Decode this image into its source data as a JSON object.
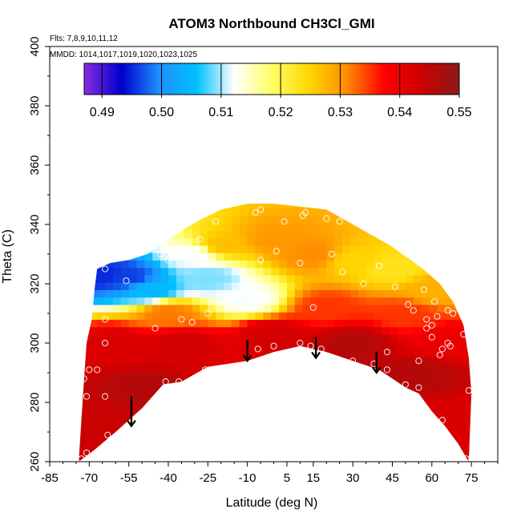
{
  "chart_data": {
    "type": "heatmap",
    "title": "ATOM3 Northbound CH3Cl_GMI",
    "xlabel": "Latitude (deg N)",
    "ylabel": "Theta (C)",
    "flights_note": "Flts: 7,8,9,10,11,12",
    "dates_note": "MMDD: 1014,1017,1019,1020,1023,1025",
    "xlim": [
      -85,
      85
    ],
    "ylim": [
      260,
      400
    ],
    "x_ticks": [
      -85,
      -70,
      -55,
      -40,
      -25,
      -10,
      5,
      15,
      30,
      45,
      60,
      75
    ],
    "y_ticks": [
      260,
      280,
      300,
      320,
      340,
      360,
      380,
      400
    ],
    "colorbar": {
      "min": 0.487,
      "max": 0.55,
      "ticks": [
        0.49,
        0.5,
        0.51,
        0.52,
        0.53,
        0.54,
        0.55
      ],
      "tick_labels": [
        "0.49",
        "0.50",
        "0.51",
        "0.52",
        "0.53",
        "0.54",
        "0.55"
      ],
      "colors": [
        "#8a2be2",
        "#0000cd",
        "#1e90ff",
        "#00bfff",
        "#ffffff",
        "#ffff66",
        "#ffd700",
        "#ff8c00",
        "#ff0000",
        "#cc0000",
        "#8b1a1a"
      ]
    },
    "upper_boundary": [
      [
        -72,
        287
      ],
      [
        -71,
        300
      ],
      [
        -69,
        308
      ],
      [
        -68,
        318
      ],
      [
        -67,
        325
      ],
      [
        -62,
        327
      ],
      [
        -55,
        328
      ],
      [
        -48,
        330
      ],
      [
        -43,
        333
      ],
      [
        -38,
        336
      ],
      [
        -33,
        339
      ],
      [
        -27,
        342
      ],
      [
        -20,
        345
      ],
      [
        -10,
        347
      ],
      [
        0,
        347
      ],
      [
        10,
        346
      ],
      [
        20,
        345
      ],
      [
        28,
        341
      ],
      [
        36,
        337
      ],
      [
        44,
        333
      ],
      [
        52,
        328
      ],
      [
        58,
        324
      ],
      [
        63,
        320
      ],
      [
        68,
        314
      ],
      [
        72,
        306
      ],
      [
        74,
        295
      ],
      [
        75,
        283
      ]
    ],
    "lower_boundary": [
      [
        -74,
        260
      ],
      [
        -68,
        264
      ],
      [
        -60,
        270
      ],
      [
        -50,
        278
      ],
      [
        -42,
        286
      ],
      [
        -35,
        287
      ],
      [
        -25,
        292
      ],
      [
        -10,
        294
      ],
      [
        0,
        297
      ],
      [
        10,
        299
      ],
      [
        20,
        297
      ],
      [
        30,
        294
      ],
      [
        40,
        291
      ],
      [
        45,
        288
      ],
      [
        50,
        285
      ],
      [
        55,
        283
      ],
      [
        60,
        277
      ],
      [
        65,
        272
      ],
      [
        70,
        266
      ],
      [
        74,
        260
      ]
    ],
    "field_points": [
      {
        "lat": -65,
        "theta": 323,
        "value": 0.495
      },
      {
        "lat": -55,
        "theta": 322,
        "value": 0.496
      },
      {
        "lat": -47,
        "theta": 318,
        "value": 0.505
      },
      {
        "lat": -30,
        "theta": 330,
        "value": 0.512
      },
      {
        "lat": -25,
        "theta": 322,
        "value": 0.509
      },
      {
        "lat": -20,
        "theta": 333,
        "value": 0.527
      },
      {
        "lat": 0,
        "theta": 335,
        "value": 0.53
      },
      {
        "lat": 15,
        "theta": 330,
        "value": 0.531
      },
      {
        "lat": 30,
        "theta": 328,
        "value": 0.525
      },
      {
        "lat": 45,
        "theta": 325,
        "value": 0.523
      },
      {
        "lat": 60,
        "theta": 318,
        "value": 0.528
      },
      {
        "lat": -10,
        "theta": 315,
        "value": 0.512
      },
      {
        "lat": -40,
        "theta": 310,
        "value": 0.532
      },
      {
        "lat": 20,
        "theta": 312,
        "value": 0.535
      },
      {
        "lat": 50,
        "theta": 310,
        "value": 0.535
      },
      {
        "lat": -60,
        "theta": 300,
        "value": 0.542
      },
      {
        "lat": -35,
        "theta": 300,
        "value": 0.543
      },
      {
        "lat": 0,
        "theta": 303,
        "value": 0.543
      },
      {
        "lat": 30,
        "theta": 300,
        "value": 0.546
      },
      {
        "lat": 65,
        "theta": 300,
        "value": 0.54
      },
      {
        "lat": -70,
        "theta": 275,
        "value": 0.544
      },
      {
        "lat": -50,
        "theta": 285,
        "value": 0.546
      },
      {
        "lat": 55,
        "theta": 290,
        "value": 0.546
      },
      {
        "lat": 70,
        "theta": 275,
        "value": 0.542
      }
    ],
    "samples": [
      {
        "lat": -73,
        "theta": 261
      },
      {
        "lat": -71,
        "theta": 263
      },
      {
        "lat": -63,
        "theta": 269
      },
      {
        "lat": -71,
        "theta": 282
      },
      {
        "lat": -64,
        "theta": 282
      },
      {
        "lat": -72,
        "theta": 288
      },
      {
        "lat": -70,
        "theta": 291
      },
      {
        "lat": -67,
        "theta": 291
      },
      {
        "lat": -64,
        "theta": 300
      },
      {
        "lat": -64,
        "theta": 308
      },
      {
        "lat": -45,
        "theta": 305
      },
      {
        "lat": -41,
        "theta": 287
      },
      {
        "lat": -36,
        "theta": 287
      },
      {
        "lat": -26,
        "theta": 291
      },
      {
        "lat": -35,
        "theta": 308
      },
      {
        "lat": -25,
        "theta": 310
      },
      {
        "lat": -56,
        "theta": 321
      },
      {
        "lat": -64,
        "theta": 325
      },
      {
        "lat": -43,
        "theta": 330
      },
      {
        "lat": -28,
        "theta": 335
      },
      {
        "lat": -22,
        "theta": 341
      },
      {
        "lat": -21,
        "theta": 314
      },
      {
        "lat": -40,
        "theta": 328
      },
      {
        "lat": -12,
        "theta": 315
      },
      {
        "lat": -7,
        "theta": 344
      },
      {
        "lat": -6,
        "theta": 298
      },
      {
        "lat": -8,
        "theta": 315
      },
      {
        "lat": -5,
        "theta": 328
      },
      {
        "lat": 1,
        "theta": 331
      },
      {
        "lat": 10,
        "theta": 327
      },
      {
        "lat": 10,
        "theta": 300
      },
      {
        "lat": 11,
        "theta": 343
      },
      {
        "lat": 12,
        "theta": 344
      },
      {
        "lat": 15,
        "theta": 312
      },
      {
        "lat": 14,
        "theta": 299
      },
      {
        "lat": 18,
        "theta": 298
      },
      {
        "lat": 20,
        "theta": 342
      },
      {
        "lat": 25,
        "theta": 341
      },
      {
        "lat": 22,
        "theta": 330
      },
      {
        "lat": 26,
        "theta": 324
      },
      {
        "lat": 30,
        "theta": 294
      },
      {
        "lat": 34,
        "theta": 320
      },
      {
        "lat": 38,
        "theta": 293
      },
      {
        "lat": 43,
        "theta": 291
      },
      {
        "lat": 43,
        "theta": 297
      },
      {
        "lat": 40,
        "theta": 326
      },
      {
        "lat": 46,
        "theta": 319
      },
      {
        "lat": 50,
        "theta": 286
      },
      {
        "lat": 51,
        "theta": 313
      },
      {
        "lat": 53,
        "theta": 311
      },
      {
        "lat": 55,
        "theta": 285
      },
      {
        "lat": 55,
        "theta": 294
      },
      {
        "lat": 57,
        "theta": 318
      },
      {
        "lat": 58,
        "theta": 305
      },
      {
        "lat": 58,
        "theta": 308
      },
      {
        "lat": 60,
        "theta": 306
      },
      {
        "lat": 60,
        "theta": 302
      },
      {
        "lat": 61,
        "theta": 314
      },
      {
        "lat": 62,
        "theta": 309
      },
      {
        "lat": 63,
        "theta": 296
      },
      {
        "lat": 64,
        "theta": 298
      },
      {
        "lat": 66,
        "theta": 300
      },
      {
        "lat": 67,
        "theta": 299
      },
      {
        "lat": 64,
        "theta": 274
      },
      {
        "lat": 66,
        "theta": 311
      },
      {
        "lat": 68,
        "theta": 310
      },
      {
        "lat": 72,
        "theta": 303
      },
      {
        "lat": 74,
        "theta": 284
      },
      {
        "lat": 73,
        "theta": 261
      },
      {
        "lat": -5,
        "theta": 345
      },
      {
        "lat": 4,
        "theta": 341
      },
      {
        "lat": -31,
        "theta": 307
      },
      {
        "lat": 0,
        "theta": 299
      }
    ],
    "arrows": [
      {
        "lat": -54,
        "from": 282,
        "to": 272
      },
      {
        "lat": -10,
        "from": 301,
        "to": 294
      },
      {
        "lat": 16,
        "from": 302,
        "to": 295
      },
      {
        "lat": 39,
        "from": 297,
        "to": 290
      }
    ]
  }
}
